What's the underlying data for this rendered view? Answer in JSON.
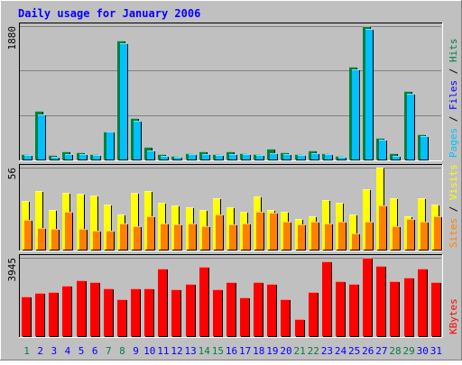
{
  "chart_data": {
    "type": "bar",
    "title": "Daily usage for January 2006",
    "categories": [
      "1",
      "2",
      "3",
      "4",
      "5",
      "6",
      "7",
      "8",
      "9",
      "10",
      "11",
      "12",
      "13",
      "14",
      "15",
      "16",
      "17",
      "18",
      "19",
      "20",
      "21",
      "22",
      "23",
      "24",
      "25",
      "26",
      "27",
      "28",
      "29",
      "30",
      "31"
    ],
    "weekend_days": [
      1,
      7,
      8,
      14,
      15,
      21,
      22,
      28,
      29
    ],
    "colors": {
      "background": "#C0C0C0",
      "title": "#0000FF",
      "hits": "#008040",
      "files": "#00C0FF",
      "visits": "#FFFF00",
      "sites": "#FF8000",
      "kbytes": "#FF0000",
      "weekday_label": "#0000FF",
      "weekend_label": "#008040"
    },
    "panels": [
      {
        "id": "hits-files",
        "ymax_label": "1880",
        "ylim": [
          0,
          1880
        ],
        "legend": [
          {
            "text": "Pages",
            "color": "#00C0FF"
          },
          {
            "text": " / ",
            "color": "#000000"
          },
          {
            "text": "Files",
            "color": "#0000FF"
          },
          {
            "text": " / ",
            "color": "#000000"
          },
          {
            "text": "Hits",
            "color": "#008040"
          }
        ],
        "series": [
          {
            "name": "Hits",
            "color": "#008040",
            "values": [
              80,
              680,
              60,
              110,
              100,
              80,
              400,
              1680,
              580,
              180,
              70,
              50,
              90,
              120,
              80,
              110,
              90,
              80,
              150,
              100,
              80,
              130,
              90,
              50,
              1310,
              1880,
              300,
              90,
              970,
              350,
              0
            ]
          },
          {
            "name": "Files",
            "color": "#00C0FF",
            "values": [
              60,
              640,
              40,
              80,
              70,
              60,
              390,
              1640,
              540,
              130,
              50,
              40,
              70,
              80,
              60,
              80,
              70,
              60,
              90,
              80,
              60,
              90,
              70,
              40,
              1270,
              1840,
              280,
              50,
              930,
              330,
              0
            ]
          }
        ]
      },
      {
        "id": "visits-sites",
        "ymax_label": "56",
        "ylim": [
          0,
          56
        ],
        "legend": [
          {
            "text": "Sites",
            "color": "#FF8000"
          },
          {
            "text": " / ",
            "color": "#000000"
          },
          {
            "text": "Visits",
            "color": "#FFFF00"
          }
        ],
        "series": [
          {
            "name": "Visits",
            "color": "#FFFF00",
            "values": [
              33,
              40,
              27,
              39,
              38,
              37,
              31,
              24,
              39,
              40,
              32,
              30,
              29,
              27,
              35,
              29,
              26,
              36,
              27,
              26,
              21,
              23,
              34,
              32,
              24,
              41,
              56,
              35,
              23,
              35,
              31
            ]
          },
          {
            "name": "Sites",
            "color": "#FF8000",
            "values": [
              20,
              15,
              14,
              26,
              14,
              13,
              13,
              18,
              16,
              23,
              18,
              17,
              18,
              16,
              24,
              17,
              18,
              26,
              25,
              19,
              17,
              19,
              18,
              19,
              11,
              19,
              30,
              16,
              21,
              19,
              23
            ]
          }
        ]
      },
      {
        "id": "kbytes",
        "ymax_label": "3945",
        "ylim": [
          0,
          3945
        ],
        "legend": [
          {
            "text": "KBytes",
            "color": "#FF0000"
          }
        ],
        "series": [
          {
            "name": "KBytes",
            "color": "#FF0000",
            "values": [
              2000,
              2170,
              2240,
              2530,
              2820,
              2710,
              2420,
              1880,
              2420,
              2420,
              3400,
              2350,
              2620,
              3480,
              2350,
              2710,
              1950,
              2710,
              2640,
              1880,
              870,
              2240,
              3770,
              2780,
              2640,
              3945,
              3550,
              2780,
              2930,
              3400,
              2710
            ]
          }
        ]
      }
    ]
  }
}
